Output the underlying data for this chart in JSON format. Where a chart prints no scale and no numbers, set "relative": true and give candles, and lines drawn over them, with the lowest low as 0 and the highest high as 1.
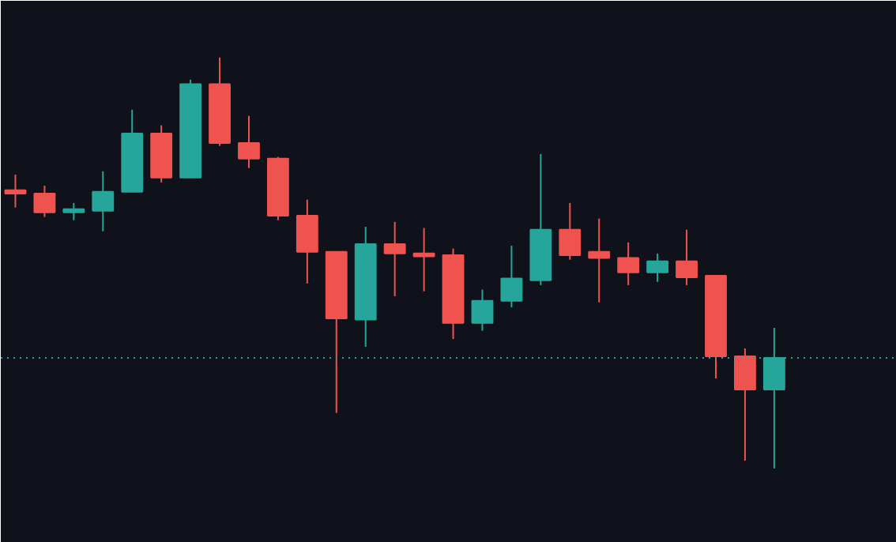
{
  "chart_data": {
    "type": "candlestick",
    "relative": true,
    "categories": [
      null,
      null,
      null,
      null,
      null,
      null,
      null,
      null,
      null,
      null,
      null,
      null,
      null,
      null,
      null,
      null,
      null,
      null,
      null,
      null,
      null,
      null,
      null,
      null,
      null,
      null,
      null
    ],
    "ohlc": [
      [
        0.677,
        0.715,
        0.635,
        0.669
      ],
      [
        0.669,
        0.688,
        0.612,
        0.623
      ],
      [
        0.623,
        0.646,
        0.604,
        0.631
      ],
      [
        0.627,
        0.723,
        0.577,
        0.673
      ],
      [
        0.673,
        0.873,
        0.673,
        0.815
      ],
      [
        0.815,
        0.835,
        0.696,
        0.708
      ],
      [
        0.708,
        0.946,
        0.708,
        0.935
      ],
      [
        0.935,
        1,
        0.785,
        0.792
      ],
      [
        0.792,
        0.858,
        0.731,
        0.754
      ],
      [
        0.754,
        0.758,
        0.604,
        0.615
      ],
      [
        0.615,
        0.654,
        0.45,
        0.527
      ],
      [
        0.527,
        0.527,
        0.135,
        0.365
      ],
      [
        0.362,
        0.588,
        0.296,
        0.546
      ],
      [
        0.546,
        0.6,
        0.419,
        0.523
      ],
      [
        0.523,
        0.585,
        0.431,
        0.519
      ],
      [
        0.519,
        0.535,
        0.315,
        0.354
      ],
      [
        0.354,
        0.435,
        0.335,
        0.408
      ],
      [
        0.408,
        0.542,
        0.392,
        0.462
      ],
      [
        0.458,
        0.765,
        0.446,
        0.581
      ],
      [
        0.581,
        0.646,
        0.508,
        0.519
      ],
      [
        0.527,
        0.608,
        0.404,
        0.512
      ],
      [
        0.512,
        0.55,
        0.446,
        0.477
      ],
      [
        0.477,
        0.523,
        0.454,
        0.504
      ],
      [
        0.504,
        0.581,
        0.446,
        0.465
      ],
      [
        0.469,
        0.469,
        0.219,
        0.273
      ],
      [
        0.273,
        0.292,
        0.019,
        0.192
      ],
      [
        0.192,
        0.342,
        0,
        0.269
      ]
    ],
    "colors": [
      "#ef5350",
      "#ef5350",
      "#26a69a",
      "#26a69a",
      "#26a69a",
      "#ef5350",
      "#26a69a",
      "#ef5350",
      "#ef5350",
      "#ef5350",
      "#ef5350",
      "#ef5350",
      "#26a69a",
      "#ef5350",
      "#ef5350",
      "#ef5350",
      "#26a69a",
      "#26a69a",
      "#26a69a",
      "#ef5350",
      "#ef5350",
      "#ef5350",
      "#26a69a",
      "#ef5350",
      "#ef5350",
      "#ef5350",
      "#26a69a"
    ],
    "ref_lines": [
      {
        "axis": "y",
        "value": 0.269,
        "color": "#26a69a",
        "line_style": "dotted"
      }
    ]
  }
}
